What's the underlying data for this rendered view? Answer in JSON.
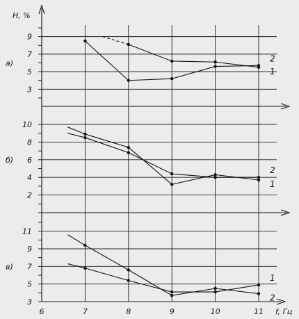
{
  "chart_data": {
    "type": "line",
    "ylabel": "H, %",
    "xlabel": "f, Гц",
    "x_ticks": [
      6,
      7,
      8,
      9,
      10,
      11
    ],
    "xlim": [
      6,
      11.6
    ],
    "grid": true,
    "panels": [
      {
        "label": "а)",
        "ylim": [
          2,
          10
        ],
        "y_ticks": [
          3,
          5,
          7,
          9
        ],
        "series": [
          {
            "name": "1",
            "x": [
              7.4,
              8,
              9,
              10,
              11
            ],
            "y": [
              9.0,
              8.1,
              6.2,
              6.1,
              5.5
            ],
            "dashed_to": 8,
            "marker_from": 1
          },
          {
            "name": "2",
            "x": [
              7,
              8,
              9,
              10,
              11
            ],
            "y": [
              8.5,
              4.0,
              4.2,
              5.6,
              5.7
            ],
            "marker_from": 0
          }
        ]
      },
      {
        "label": "б)",
        "ylim": [
          0,
          10
        ],
        "y_ticks": [
          2,
          4,
          6,
          8,
          10
        ],
        "series": [
          {
            "name": "1",
            "x": [
              6.6,
              7,
              8,
              9,
              10,
              11
            ],
            "y": [
              9.7,
              8.9,
              7.4,
              3.2,
              4.3,
              3.7
            ],
            "marker_from": 1
          },
          {
            "name": "2",
            "x": [
              6.6,
              7,
              8,
              9,
              10,
              11
            ],
            "y": [
              9.0,
              8.5,
              6.8,
              4.4,
              4.0,
              4.0
            ],
            "marker_from": 1
          }
        ]
      },
      {
        "label": "в)",
        "ylim": [
          3,
          12
        ],
        "y_ticks": [
          3,
          5,
          7,
          9,
          11
        ],
        "series": [
          {
            "name": "1",
            "x": [
              6.6,
              7,
              8,
              9,
              10,
              11
            ],
            "y": [
              7.3,
              6.8,
              5.4,
              4.1,
              4.1,
              4.9
            ],
            "marker_from": 1
          },
          {
            "name": "2",
            "x": [
              6.6,
              7,
              8,
              9,
              10,
              11
            ],
            "y": [
              10.6,
              9.4,
              6.6,
              3.7,
              4.5,
              3.9
            ],
            "marker_from": 1
          }
        ]
      }
    ]
  }
}
